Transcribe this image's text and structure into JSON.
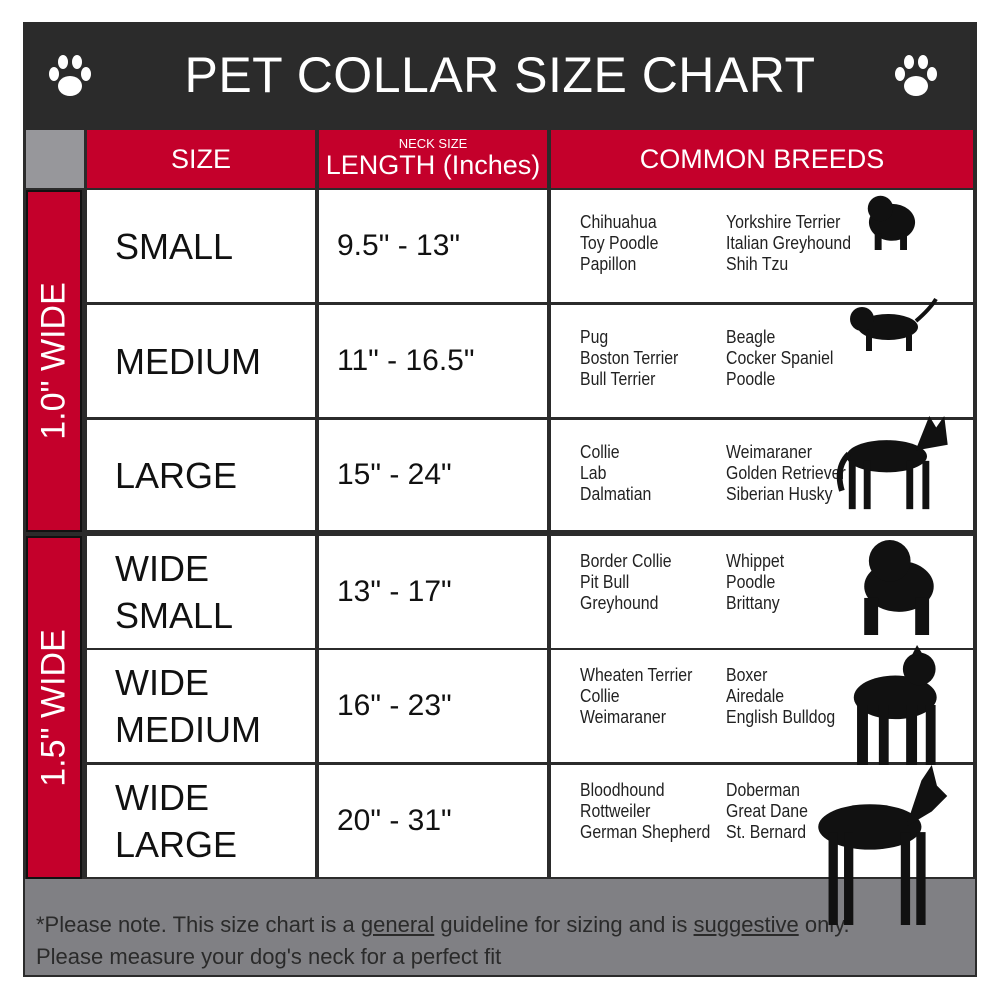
{
  "title": "PET COLLAR SIZE CHART",
  "headers": {
    "size": "SIZE",
    "length_top": "NECK SIZE",
    "length": "LENGTH (Inches)",
    "breeds": "COMMON BREEDS"
  },
  "groups": [
    {
      "label": "1.0\" WIDE"
    },
    {
      "label": "1.5\" WIDE"
    }
  ],
  "rows": [
    {
      "size": "SMALL",
      "length": "9.5\" - 13\"",
      "breeds_a": [
        "Chihuahua",
        "Toy Poodle",
        "Papillon"
      ],
      "breeds_b": [
        "Yorkshire Terrier",
        "Italian Greyhound",
        "Shih Tzu"
      ],
      "icon": "small-dog-silhouette-icon"
    },
    {
      "size": "MEDIUM",
      "length": "11\" - 16.5\"",
      "breeds_a": [
        "Pug",
        "Boston Terrier",
        "Bull Terrier"
      ],
      "breeds_b": [
        "Beagle",
        "Cocker Spaniel",
        "Poodle"
      ],
      "icon": "medium-dog-silhouette-icon"
    },
    {
      "size": "LARGE",
      "length": "15\" - 24\"",
      "breeds_a": [
        "Collie",
        "Lab",
        "Dalmatian"
      ],
      "breeds_b": [
        "Weimaraner",
        "Golden Retriever",
        "Siberian Husky"
      ],
      "icon": "large-dog-silhouette-icon"
    },
    {
      "size": "WIDE SMALL",
      "length": "13\" - 17\"",
      "breeds_a": [
        "Border Collie",
        "Pit Bull",
        "Greyhound"
      ],
      "breeds_b": [
        "Whippet",
        "Poodle",
        "Brittany"
      ],
      "icon": "bulldog-silhouette-icon"
    },
    {
      "size": "WIDE MEDIUM",
      "length": "16\" - 23\"",
      "breeds_a": [
        "Wheaten Terrier",
        "Collie",
        "Weimaraner"
      ],
      "breeds_b": [
        "Boxer",
        "Airedale",
        "English Bulldog"
      ],
      "icon": "pitbull-silhouette-icon"
    },
    {
      "size": "WIDE LARGE",
      "length": "20\" - 31\"",
      "breeds_a": [
        "Bloodhound",
        "Rottweiler",
        "German Shepherd"
      ],
      "breeds_b": [
        "Doberman",
        "Great Dane",
        "St. Bernard"
      ],
      "icon": "doberman-silhouette-icon"
    }
  ],
  "footer": {
    "p1": "*Please note. This size chart is a ",
    "u1": "general",
    "p2": " guideline for sizing and is ",
    "u2": "suggestive",
    "p3": " only.",
    "line2": "Please measure your dog's neck for a perfect fit"
  },
  "colors": {
    "red": "#c4002b",
    "dark": "#2b2b2b",
    "gray": "#808084"
  }
}
